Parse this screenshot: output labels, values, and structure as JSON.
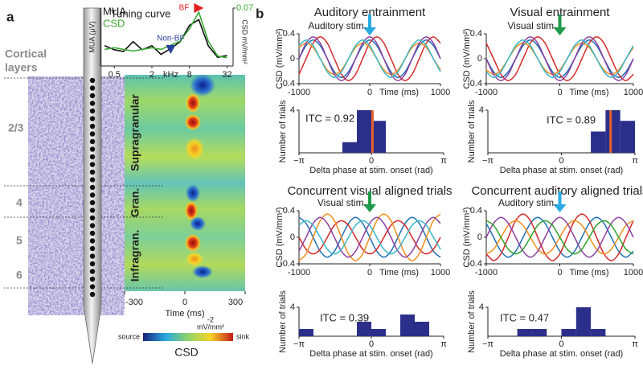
{
  "figure": {
    "panel_a": "a",
    "panel_b": "b",
    "layers_title": [
      "Cortical",
      "layers"
    ],
    "layers": [
      "2/3",
      "4",
      "5",
      "6"
    ]
  },
  "chart_data": [
    {
      "type": "line",
      "title": "Tuning curve",
      "xscale": "log",
      "xlabel": "kHz",
      "ylabel": "MUA (μV)",
      "y2label": "CSD mV/mm²",
      "legend": true,
      "x": [
        0.35,
        0.5,
        0.7,
        1,
        1.4,
        2,
        2.8,
        4,
        5.7,
        8,
        11.3,
        16,
        22.6,
        32
      ],
      "xlim": [
        0.3,
        40
      ],
      "xticks": [
        0.5,
        2,
        8,
        32
      ],
      "ylim": [
        0,
        1
      ],
      "y2lim": [
        0,
        0.07
      ],
      "y2ticks": [
        0.07
      ],
      "series": [
        {
          "name": "MUA",
          "color": "#111111",
          "values": [
            0.35,
            0.28,
            0.25,
            0.42,
            0.28,
            0.35,
            0.2,
            0.3,
            0.42,
            0.7,
            0.8,
            0.35,
            0.15,
            0.18
          ]
        },
        {
          "name": "CSD",
          "color": "#3aa935",
          "axis": "y2",
          "values": [
            0.02,
            0.022,
            0.02,
            0.018,
            0.02,
            0.022,
            0.02,
            0.025,
            0.03,
            0.045,
            0.065,
            0.03,
            0.012,
            0.01
          ]
        }
      ],
      "annotations": [
        {
          "text": "BF",
          "x": 11.3,
          "color": "#e02020"
        },
        {
          "text": "Non-BF",
          "x": 4,
          "color": "#2a3f9a"
        }
      ]
    },
    {
      "type": "heatmap",
      "xlabel": "Time (ms)",
      "xlim": [
        -300,
        300
      ],
      "xticks": [
        -300,
        0,
        300
      ],
      "regions": [
        "Supragranular",
        "Gran.",
        "Infragran."
      ],
      "colorbar": {
        "label": "CSD",
        "low": "source",
        "high": "sink",
        "tick": "-2",
        "unit": "mV/mm²"
      }
    },
    {
      "type": "line",
      "title": "Auditory entrainment",
      "xlabel": "Time (ms)",
      "ylabel": "CSD (mV/mm²)",
      "x": [
        -1000,
        -900,
        -800,
        -700,
        -600,
        -500,
        -400,
        -300,
        -200,
        -100,
        0,
        100,
        200,
        300,
        400,
        500,
        600,
        700,
        800,
        900,
        1000
      ],
      "xlim": [
        -1000,
        1000
      ],
      "xticks": [
        -1000,
        0,
        1000
      ],
      "ylim": [
        -0.4,
        0.4
      ],
      "yticks": [
        -0.4,
        0,
        0.4
      ],
      "series": [
        {
          "color": "#1f6fb5",
          "values": [
            0,
            0.21,
            0.3,
            0.21,
            0,
            -0.21,
            -0.3,
            -0.21,
            0,
            0.21,
            0.3,
            0.21,
            0,
            -0.21,
            -0.3,
            -0.21,
            0,
            0.21,
            0.3,
            0.21,
            0
          ]
        },
        {
          "color": "#d62728",
          "values": [
            -0.25,
            0,
            0.25,
            0.35,
            0.25,
            0,
            -0.25,
            -0.35,
            -0.25,
            0,
            0.25,
            0.35,
            0.25,
            0,
            -0.25,
            -0.35,
            -0.25,
            0,
            0.25,
            0.35,
            0.25
          ]
        },
        {
          "color": "#f28e1c",
          "values": [
            0.18,
            0.25,
            0.18,
            0,
            -0.18,
            -0.25,
            -0.18,
            0,
            0.18,
            0.25,
            0.18,
            0,
            -0.18,
            -0.25,
            -0.18,
            0,
            0.18,
            0.25,
            0.18,
            0,
            -0.18
          ]
        },
        {
          "color": "#8c3fa0",
          "values": [
            0,
            0.25,
            0.35,
            0.25,
            0,
            -0.25,
            -0.35,
            -0.25,
            0,
            0.25,
            0.35,
            0.25,
            0,
            -0.25,
            -0.35,
            -0.25,
            0,
            0.25,
            0.35,
            0.25,
            0
          ]
        },
        {
          "color": "#3ab7c9",
          "values": [
            0.21,
            0.3,
            0.21,
            0,
            -0.21,
            -0.3,
            -0.21,
            0,
            0.21,
            0.3,
            0.21,
            0,
            -0.21,
            -0.3,
            -0.21,
            0,
            0.21,
            0.3,
            0.21,
            0,
            -0.21
          ]
        }
      ],
      "annotations": [
        {
          "text": "Auditory stim.",
          "x": 0,
          "color": "#29abe2"
        }
      ]
    },
    {
      "type": "histogram",
      "annotation": "ITC = 0.92",
      "xlabel": "Delta phase at stim. onset (rad)",
      "ylabel": "Number of trials",
      "color": "#2b2f8a",
      "bins": [
        -3.14159,
        -2.51327,
        -1.88496,
        -1.25664,
        -0.62832,
        0,
        0.62832,
        1.25664,
        1.88496,
        2.51327,
        3.14159
      ],
      "counts": [
        0,
        0,
        0,
        1,
        4,
        3,
        0,
        0,
        0,
        0
      ],
      "mean_phase": 0.05,
      "mean_color": "#e8602c",
      "xlim": [
        -3.14159,
        3.14159
      ],
      "xticks": [
        {
          "value": -3.14159,
          "label": "−π"
        },
        0,
        {
          "value": 3.14159,
          "label": "π"
        }
      ],
      "ylim": [
        0,
        4
      ],
      "yticks": [
        4
      ]
    },
    {
      "type": "line",
      "title": "Visual entrainment",
      "xlabel": "Time (ms)",
      "ylabel": "CSD (mV/mm²)",
      "x": [
        -1000,
        -900,
        -800,
        -700,
        -600,
        -500,
        -400,
        -300,
        -200,
        -100,
        0,
        100,
        200,
        300,
        400,
        500,
        600,
        700,
        800,
        900,
        1000
      ],
      "xlim": [
        -1000,
        1000
      ],
      "xticks": [
        -1000,
        0,
        1000
      ],
      "ylim": [
        -0.4,
        0.4
      ],
      "yticks": [
        -0.4,
        0,
        0.4
      ],
      "series": [
        {
          "color": "#1f6fb5",
          "values": [
            0,
            -0.21,
            -0.3,
            -0.21,
            0,
            0.21,
            0.3,
            0.21,
            0,
            -0.21,
            -0.3,
            -0.21,
            0,
            0.21,
            0.3,
            0.21,
            0,
            -0.21,
            -0.3,
            -0.21,
            0
          ]
        },
        {
          "color": "#d62728",
          "values": [
            0.25,
            0,
            -0.25,
            -0.35,
            -0.25,
            0,
            0.25,
            0.35,
            0.25,
            0,
            -0.25,
            -0.35,
            -0.25,
            0,
            0.25,
            0.35,
            0.25,
            0,
            -0.25,
            -0.35,
            -0.25
          ]
        },
        {
          "color": "#f28e1c",
          "values": [
            -0.18,
            -0.25,
            -0.18,
            0,
            0.18,
            0.25,
            0.18,
            0,
            -0.18,
            -0.25,
            -0.18,
            0,
            0.18,
            0.25,
            0.18,
            0,
            -0.18,
            -0.25,
            -0.18,
            0,
            0.18
          ]
        },
        {
          "color": "#8c3fa0",
          "values": [
            0,
            -0.25,
            -0.35,
            -0.25,
            0,
            0.25,
            0.35,
            0.25,
            0,
            -0.25,
            -0.35,
            -0.25,
            0,
            0.25,
            0.35,
            0.25,
            0,
            -0.25,
            -0.35,
            -0.25,
            0
          ]
        },
        {
          "color": "#3ab7c9",
          "values": [
            -0.21,
            -0.3,
            -0.21,
            0,
            0.21,
            0.3,
            0.21,
            0,
            -0.21,
            -0.3,
            -0.21,
            0,
            0.21,
            0.3,
            0.21,
            0,
            -0.21,
            -0.3,
            -0.21,
            0,
            0.21
          ]
        }
      ],
      "annotations": [
        {
          "text": "Visual stim.",
          "x": 0,
          "color": "#1e9a4a"
        }
      ]
    },
    {
      "type": "histogram",
      "annotation": "ITC = 0.89",
      "xlabel": "Delta phase at stim. onset (rad)",
      "ylabel": "Number of trials",
      "color": "#2b2f8a",
      "bins": [
        -3.14159,
        -2.51327,
        -1.88496,
        -1.25664,
        -0.62832,
        0,
        0.62832,
        1.25664,
        1.88496,
        2.51327,
        3.14159
      ],
      "counts": [
        0,
        0,
        0,
        0,
        0,
        0,
        0,
        2,
        4,
        3
      ],
      "mean_phase": 2.1,
      "mean_color": "#e8602c",
      "xlim": [
        -3.14159,
        3.14159
      ],
      "xticks": [
        {
          "value": -3.14159,
          "label": "−π"
        },
        0,
        {
          "value": 3.14159,
          "label": "π"
        }
      ],
      "ylim": [
        0,
        4
      ],
      "yticks": [
        4
      ]
    },
    {
      "type": "line",
      "title": "Concurrent visual aligned trials",
      "xlabel": "Time (ms)",
      "ylabel": "CSD (mV/mm²)",
      "x": [
        -1000,
        -900,
        -800,
        -700,
        -600,
        -500,
        -400,
        -300,
        -200,
        -100,
        0,
        100,
        200,
        300,
        400,
        500,
        600,
        700,
        800,
        900,
        1000
      ],
      "xlim": [
        -1000,
        1000
      ],
      "xticks": [
        -1000,
        0,
        1000
      ],
      "ylim": [
        -0.4,
        0.4
      ],
      "yticks": [
        -0.4,
        0,
        0.4
      ],
      "series": [
        {
          "color": "#1f6fb5",
          "values": [
            0.3,
            0.21,
            0,
            -0.21,
            -0.3,
            -0.21,
            0,
            0.21,
            0.3,
            0.21,
            0,
            -0.21,
            -0.3,
            -0.21,
            0,
            0.21,
            0.3,
            0.21,
            0,
            -0.21,
            -0.3
          ]
        },
        {
          "color": "#d62728",
          "values": [
            0,
            -0.18,
            -0.25,
            -0.18,
            0,
            0.18,
            0.25,
            0.18,
            0,
            -0.18,
            -0.25,
            -0.18,
            0,
            0.18,
            0.25,
            0.18,
            0,
            -0.18,
            -0.25,
            -0.18,
            0
          ]
        },
        {
          "color": "#f28e1c",
          "values": [
            -0.35,
            -0.25,
            0,
            0.25,
            0.35,
            0.25,
            0,
            -0.25,
            -0.35,
            -0.25,
            0,
            0.25,
            0.35,
            0.25,
            0,
            -0.25,
            -0.35,
            -0.25,
            0,
            0.25,
            0.35
          ]
        },
        {
          "color": "#8c3fa0",
          "values": [
            -0.21,
            0,
            0.21,
            0.3,
            0.21,
            0,
            -0.21,
            -0.3,
            -0.21,
            0,
            0.21,
            0.3,
            0.21,
            0,
            -0.21,
            -0.3,
            -0.21,
            0,
            0.21,
            0.3,
            0.21
          ]
        },
        {
          "color": "#3ab7c9",
          "values": [
            0.18,
            0.25,
            0.18,
            0,
            -0.18,
            -0.25,
            -0.18,
            0,
            0.18,
            0.25,
            0.18,
            0,
            -0.18,
            -0.25,
            -0.18,
            0,
            0.18,
            0.25,
            0.18,
            0,
            -0.18
          ]
        }
      ],
      "annotations": [
        {
          "text": "Visual stim.",
          "x": 0,
          "color": "#1e9a4a"
        }
      ]
    },
    {
      "type": "histogram",
      "annotation": "ITC = 0.39",
      "xlabel": "Delta phase at stim. onset (rad)",
      "ylabel": "Number of trials",
      "color": "#2b2f8a",
      "bins": [
        -3.14159,
        -2.51327,
        -1.88496,
        -1.25664,
        -0.62832,
        0,
        0.62832,
        1.25664,
        1.88496,
        2.51327,
        3.14159
      ],
      "counts": [
        1,
        0,
        0,
        0,
        2,
        1,
        0,
        3,
        2,
        0
      ],
      "xlim": [
        -3.14159,
        3.14159
      ],
      "xticks": [
        {
          "value": -3.14159,
          "label": "−π"
        },
        0,
        {
          "value": 3.14159,
          "label": "π"
        }
      ],
      "ylim": [
        0,
        4
      ],
      "yticks": [
        4
      ]
    },
    {
      "type": "line",
      "title": "Concurrent auditory aligned trials",
      "xlabel": "Time (ms)",
      "ylabel": "CSD (mV/mm²)",
      "x": [
        -1000,
        -900,
        -800,
        -700,
        -600,
        -500,
        -400,
        -300,
        -200,
        -100,
        0,
        100,
        200,
        300,
        400,
        500,
        600,
        700,
        800,
        900,
        1000
      ],
      "xlim": [
        -1000,
        1000
      ],
      "xticks": [
        -1000,
        0,
        1000
      ],
      "ylim": [
        -0.4,
        0.4
      ],
      "yticks": [
        -0.4,
        0,
        0.4
      ],
      "series": [
        {
          "color": "#1f6fb5",
          "values": [
            0.21,
            0,
            -0.21,
            -0.3,
            -0.21,
            0,
            0.21,
            0.3,
            0.21,
            0,
            -0.21,
            -0.3,
            -0.21,
            0,
            0.21,
            0.3,
            0.21,
            0,
            -0.21,
            -0.3,
            -0.21
          ]
        },
        {
          "color": "#d62728",
          "values": [
            -0.25,
            -0.35,
            -0.25,
            0,
            0.25,
            0.35,
            0.25,
            0,
            -0.25,
            -0.35,
            -0.25,
            0,
            0.25,
            0.35,
            0.25,
            0,
            -0.25,
            -0.35,
            -0.25,
            0,
            0.25
          ]
        },
        {
          "color": "#f28e1c",
          "values": [
            -0.25,
            -0.18,
            0,
            0.18,
            0.25,
            0.18,
            0,
            -0.18,
            -0.25,
            -0.18,
            0,
            0.18,
            0.25,
            0.18,
            0,
            -0.18,
            -0.25,
            -0.18,
            0,
            0.18,
            0.25
          ]
        },
        {
          "color": "#8c3fa0",
          "values": [
            0,
            0.21,
            0.3,
            0.21,
            0,
            -0.21,
            -0.3,
            -0.21,
            0,
            0.21,
            0.3,
            0.21,
            0,
            -0.21,
            -0.3,
            -0.21,
            0,
            0.21,
            0.3,
            0.21,
            0
          ]
        },
        {
          "color": "#2ca02c",
          "values": [
            0.25,
            0.18,
            0,
            -0.18,
            -0.25,
            -0.18,
            0,
            0.18,
            0.25,
            0.18,
            0,
            -0.18,
            -0.25,
            -0.18,
            0,
            0.18,
            0.25,
            0.18,
            0,
            -0.18,
            -0.25
          ]
        }
      ],
      "annotations": [
        {
          "text": "Auditory stim.",
          "x": 0,
          "color": "#29abe2"
        }
      ]
    },
    {
      "type": "histogram",
      "annotation": "ITC = 0.47",
      "xlabel": "Delta phase at stim. onset (rad)",
      "ylabel": "Number of trials",
      "color": "#2b2f8a",
      "bins": [
        -3.14159,
        -2.51327,
        -1.88496,
        -1.25664,
        -0.62832,
        0,
        0.62832,
        1.25664,
        1.88496,
        2.51327,
        3.14159
      ],
      "counts": [
        0,
        0,
        1,
        1,
        0,
        1,
        4,
        1,
        0,
        0
      ],
      "xlim": [
        -3.14159,
        3.14159
      ],
      "xticks": [
        {
          "value": -3.14159,
          "label": "−π"
        },
        0,
        {
          "value": 3.14159,
          "label": "π"
        }
      ],
      "ylim": [
        0,
        4
      ],
      "yticks": [
        4
      ]
    }
  ]
}
